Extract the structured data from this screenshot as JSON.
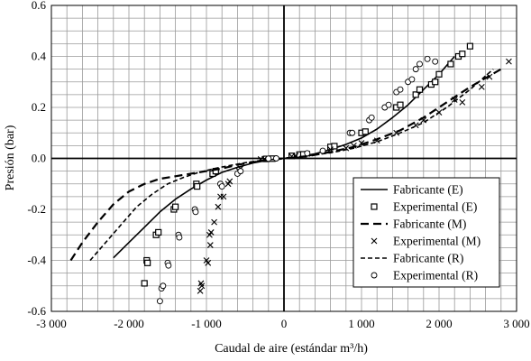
{
  "chart_data": {
    "type": "scatter",
    "xlabel": "Caudal de aire (estándar m³/h)",
    "ylabel": "Presión (bar)",
    "xlim": [
      -3000,
      3000
    ],
    "ylim": [
      -0.6,
      0.6
    ],
    "x_ticks": [
      -3000,
      -2000,
      -1000,
      0,
      1000,
      2000,
      3000
    ],
    "x_tick_labels": [
      "-3 000",
      "-2 000",
      "-1 000",
      "0",
      "1 000",
      "2 000",
      "3 000"
    ],
    "y_ticks": [
      -0.6,
      -0.4,
      -0.2,
      0.0,
      0.2,
      0.4,
      0.6
    ],
    "y_tick_labels": [
      "-0.6",
      "-0.4",
      "-0.2",
      "0.0",
      "0.2",
      "0.4",
      "0.6"
    ],
    "grid": true,
    "legend_position": "bottom-right",
    "series": [
      {
        "name": "Fabricante (E)",
        "kind": "line",
        "style": "solid",
        "points": [
          [
            -2200,
            -0.39
          ],
          [
            -2000,
            -0.33
          ],
          [
            -1800,
            -0.27
          ],
          [
            -1600,
            -0.21
          ],
          [
            -1400,
            -0.16
          ],
          [
            -1200,
            -0.12
          ],
          [
            -1000,
            -0.085
          ],
          [
            -800,
            -0.055
          ],
          [
            -600,
            -0.035
          ],
          [
            -400,
            -0.018
          ],
          [
            -200,
            -0.007
          ],
          [
            0,
            0
          ],
          [
            200,
            0.007
          ],
          [
            400,
            0.018
          ],
          [
            600,
            0.035
          ],
          [
            800,
            0.055
          ],
          [
            1000,
            0.08
          ],
          [
            1200,
            0.115
          ],
          [
            1400,
            0.16
          ],
          [
            1600,
            0.21
          ],
          [
            1800,
            0.27
          ],
          [
            2000,
            0.33
          ],
          [
            2200,
            0.4
          ]
        ]
      },
      {
        "name": "Experimental (E)",
        "kind": "marker",
        "marker": "square",
        "points": [
          [
            -1800,
            -0.49
          ],
          [
            -1770,
            -0.4
          ],
          [
            -1760,
            -0.41
          ],
          [
            -1650,
            -0.3
          ],
          [
            -1620,
            -0.29
          ],
          [
            -1420,
            -0.2
          ],
          [
            -1400,
            -0.19
          ],
          [
            -1130,
            -0.1
          ],
          [
            -1120,
            -0.11
          ],
          [
            -920,
            -0.06
          ],
          [
            -880,
            -0.05
          ],
          [
            -230,
            -0.002
          ],
          [
            -150,
            -0.001
          ],
          [
            100,
            0.01
          ],
          [
            200,
            0.015
          ],
          [
            250,
            0.016
          ],
          [
            600,
            0.045
          ],
          [
            650,
            0.048
          ],
          [
            1000,
            0.1
          ],
          [
            1050,
            0.105
          ],
          [
            1450,
            0.2
          ],
          [
            1500,
            0.21
          ],
          [
            1700,
            0.25
          ],
          [
            1750,
            0.27
          ],
          [
            1900,
            0.29
          ],
          [
            1950,
            0.3
          ],
          [
            2000,
            0.33
          ],
          [
            2150,
            0.37
          ],
          [
            2250,
            0.4
          ],
          [
            2300,
            0.41
          ],
          [
            2400,
            0.44
          ]
        ]
      },
      {
        "name": "Fabricante (M)",
        "kind": "line",
        "style": "long-dash",
        "points": [
          [
            -2750,
            -0.4
          ],
          [
            -2600,
            -0.33
          ],
          [
            -2400,
            -0.25
          ],
          [
            -2200,
            -0.18
          ],
          [
            -2000,
            -0.13
          ],
          [
            -1800,
            -0.1
          ],
          [
            -1600,
            -0.08
          ],
          [
            -1400,
            -0.07
          ],
          [
            -1200,
            -0.06
          ],
          [
            -1000,
            -0.05
          ],
          [
            -800,
            -0.04
          ],
          [
            -600,
            -0.025
          ],
          [
            -400,
            -0.015
          ],
          [
            -200,
            -0.006
          ],
          [
            0,
            0
          ],
          [
            300,
            0.008
          ],
          [
            600,
            0.025
          ],
          [
            900,
            0.045
          ],
          [
            1200,
            0.075
          ],
          [
            1500,
            0.11
          ],
          [
            1800,
            0.16
          ],
          [
            2100,
            0.22
          ],
          [
            2400,
            0.28
          ],
          [
            2800,
            0.35
          ]
        ]
      },
      {
        "name": "Experimental (M)",
        "kind": "marker",
        "marker": "x",
        "points": [
          [
            -1080,
            -0.52
          ],
          [
            -1070,
            -0.49
          ],
          [
            -1060,
            -0.5
          ],
          [
            -1000,
            -0.4
          ],
          [
            -980,
            -0.41
          ],
          [
            -950,
            -0.34
          ],
          [
            -960,
            -0.3
          ],
          [
            -940,
            -0.29
          ],
          [
            -900,
            -0.25
          ],
          [
            -850,
            -0.19
          ],
          [
            -820,
            -0.15
          ],
          [
            -780,
            -0.15
          ],
          [
            -720,
            -0.1
          ],
          [
            -700,
            -0.09
          ],
          [
            -580,
            -0.05
          ],
          [
            -560,
            -0.04
          ],
          [
            -300,
            -0.003
          ],
          [
            -250,
            -0.002
          ],
          [
            100,
            0.008
          ],
          [
            150,
            0.01
          ],
          [
            300,
            0.018
          ],
          [
            600,
            0.035
          ],
          [
            800,
            0.04
          ],
          [
            900,
            0.05
          ],
          [
            1000,
            0.06
          ],
          [
            1200,
            0.07
          ],
          [
            1450,
            0.1
          ],
          [
            1700,
            0.13
          ],
          [
            1800,
            0.15
          ],
          [
            2000,
            0.18
          ],
          [
            2200,
            0.23
          ],
          [
            2300,
            0.22
          ],
          [
            2550,
            0.28
          ],
          [
            2650,
            0.32
          ],
          [
            2900,
            0.38
          ]
        ]
      },
      {
        "name": "Fabricante (R)",
        "kind": "line",
        "style": "short-dash",
        "points": [
          [
            -2500,
            -0.4
          ],
          [
            -2300,
            -0.33
          ],
          [
            -2100,
            -0.26
          ],
          [
            -1900,
            -0.19
          ],
          [
            -1700,
            -0.14
          ],
          [
            -1500,
            -0.1
          ],
          [
            -1300,
            -0.075
          ],
          [
            -1100,
            -0.055
          ],
          [
            -900,
            -0.04
          ],
          [
            -700,
            -0.028
          ],
          [
            -500,
            -0.017
          ],
          [
            -300,
            -0.008
          ],
          [
            0,
            0
          ],
          [
            300,
            0.01
          ],
          [
            600,
            0.022
          ],
          [
            900,
            0.04
          ],
          [
            1200,
            0.065
          ],
          [
            1500,
            0.1
          ],
          [
            1800,
            0.14
          ],
          [
            2100,
            0.2
          ],
          [
            2400,
            0.27
          ],
          [
            2700,
            0.35
          ]
        ]
      },
      {
        "name": "Experimental (R)",
        "kind": "marker",
        "marker": "circle",
        "points": [
          [
            -1600,
            -0.56
          ],
          [
            -1580,
            -0.51
          ],
          [
            -1560,
            -0.5
          ],
          [
            -1500,
            -0.41
          ],
          [
            -1490,
            -0.42
          ],
          [
            -1360,
            -0.3
          ],
          [
            -1350,
            -0.31
          ],
          [
            -1150,
            -0.2
          ],
          [
            -1140,
            -0.21
          ],
          [
            -820,
            -0.1
          ],
          [
            -800,
            -0.11
          ],
          [
            -600,
            -0.06
          ],
          [
            -560,
            -0.05
          ],
          [
            -200,
            -0.001
          ],
          [
            -100,
            0
          ],
          [
            300,
            0.02
          ],
          [
            500,
            0.03
          ],
          [
            850,
            0.1
          ],
          [
            880,
            0.1
          ],
          [
            1100,
            0.15
          ],
          [
            1130,
            0.16
          ],
          [
            1300,
            0.2
          ],
          [
            1350,
            0.21
          ],
          [
            1450,
            0.26
          ],
          [
            1500,
            0.27
          ],
          [
            1600,
            0.3
          ],
          [
            1650,
            0.31
          ],
          [
            1700,
            0.35
          ],
          [
            1750,
            0.37
          ],
          [
            1850,
            0.39
          ],
          [
            1950,
            0.38
          ]
        ]
      }
    ]
  }
}
